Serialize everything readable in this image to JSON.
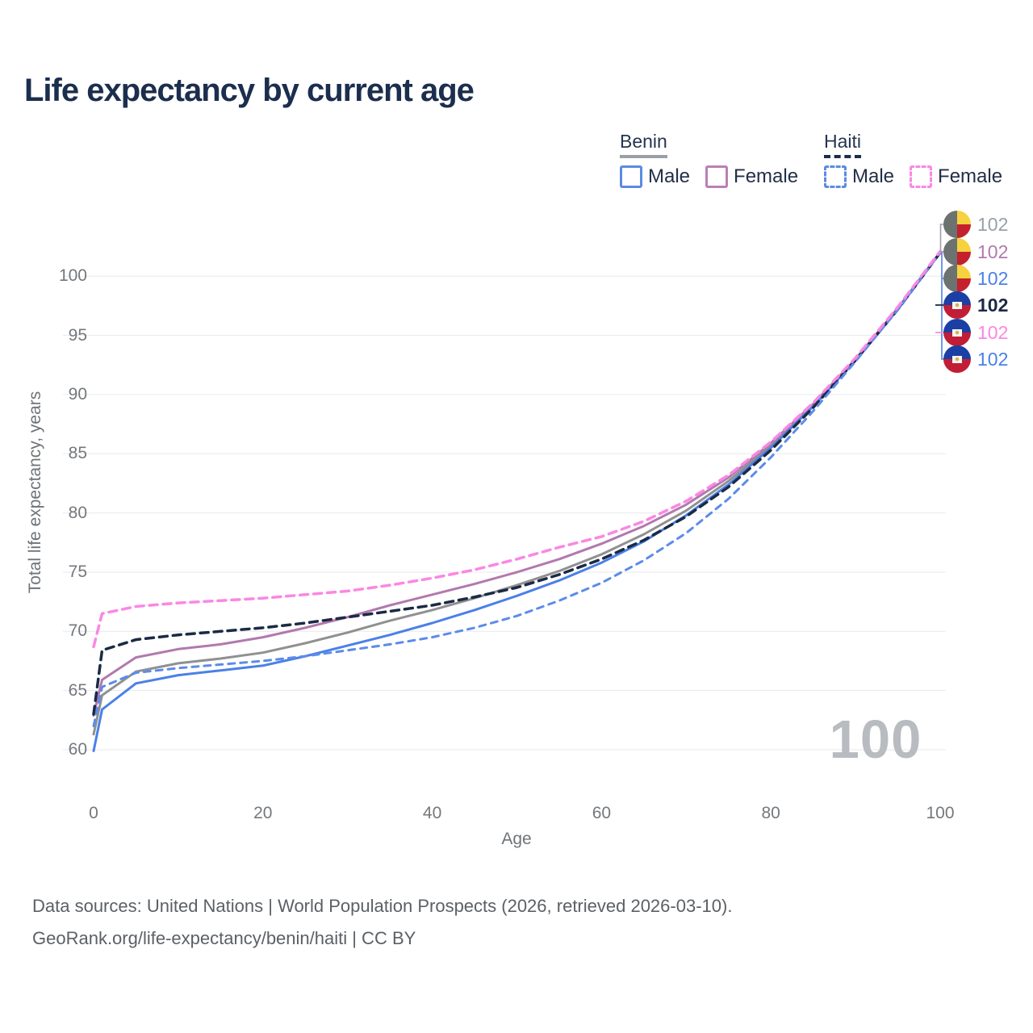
{
  "title": "Life expectancy by current age",
  "legend": {
    "groups": [
      {
        "name": "Benin",
        "line_style": "solid",
        "underline_color": "#9aa0a6",
        "items": [
          {
            "label": "Male",
            "color": "#5b8be0",
            "dashed": false
          },
          {
            "label": "Female",
            "color": "#bb7fb5",
            "dashed": false
          }
        ]
      },
      {
        "name": "Haiti",
        "line_style": "dashed",
        "underline_color": "#1c2e4e",
        "items": [
          {
            "label": "Male",
            "color": "#5b8be0",
            "dashed": true
          },
          {
            "label": "Female",
            "color": "#fb87e3",
            "dashed": true
          }
        ]
      }
    ]
  },
  "chart_data": {
    "type": "line",
    "title": "Life expectancy by current age",
    "xlabel": "Age",
    "ylabel": "Total life expectancy, years",
    "xlim": [
      0,
      100
    ],
    "ylim": [
      60,
      102
    ],
    "xticks": [
      0,
      20,
      40,
      60,
      80,
      100
    ],
    "yticks": [
      60,
      65,
      70,
      75,
      80,
      85,
      90,
      95,
      100
    ],
    "grid": "horizontal",
    "legend_position": "top-right",
    "x": [
      0,
      1,
      5,
      10,
      15,
      20,
      25,
      30,
      35,
      40,
      45,
      50,
      55,
      60,
      65,
      70,
      75,
      80,
      85,
      90,
      95,
      100
    ],
    "series": [
      {
        "id": "benin-both",
        "name": "Benin — Both sexes",
        "country": "Benin",
        "sex": "both",
        "color": "#909090",
        "dash": "",
        "width": 3,
        "values": [
          61.3,
          64.6,
          66.6,
          67.3,
          67.7,
          68.2,
          69.0,
          69.9,
          70.9,
          71.8,
          72.8,
          73.9,
          75.1,
          76.5,
          78.2,
          80.2,
          82.7,
          85.7,
          89.1,
          92.9,
          97.2,
          102.0
        ]
      },
      {
        "id": "benin-female",
        "name": "Benin — Female",
        "country": "Benin",
        "sex": "female",
        "color": "#b279ae",
        "dash": "",
        "width": 3,
        "values": [
          62.9,
          65.9,
          67.8,
          68.5,
          68.9,
          69.5,
          70.3,
          71.2,
          72.2,
          73.1,
          74.0,
          75.0,
          76.1,
          77.4,
          78.9,
          80.7,
          83.0,
          85.9,
          89.2,
          93.0,
          97.3,
          102.0
        ]
      },
      {
        "id": "benin-male",
        "name": "Benin — Male",
        "country": "Benin",
        "sex": "male",
        "color": "#4a80e8",
        "dash": "",
        "width": 3,
        "values": [
          59.9,
          63.4,
          65.6,
          66.3,
          66.7,
          67.1,
          67.9,
          68.8,
          69.7,
          70.7,
          71.8,
          73.0,
          74.3,
          75.8,
          77.6,
          79.8,
          82.4,
          85.5,
          89.0,
          92.9,
          97.2,
          102.0
        ]
      },
      {
        "id": "haiti-both",
        "name": "Haiti — Both sexes",
        "country": "Haiti",
        "sex": "both",
        "color": "#1b2a45",
        "dash": "10 7",
        "width": 3.5,
        "values": [
          63.0,
          68.4,
          69.3,
          69.7,
          70.0,
          70.3,
          70.7,
          71.2,
          71.7,
          72.2,
          72.9,
          73.7,
          74.8,
          76.1,
          77.7,
          79.7,
          82.2,
          85.3,
          88.9,
          92.9,
          97.2,
          102.0
        ]
      },
      {
        "id": "haiti-male",
        "name": "Haiti — Male",
        "country": "Haiti",
        "sex": "male",
        "color": "#5d8bea",
        "dash": "8 7",
        "width": 3,
        "values": [
          62.0,
          65.3,
          66.5,
          66.9,
          67.2,
          67.5,
          67.9,
          68.4,
          68.9,
          69.5,
          70.3,
          71.3,
          72.6,
          74.1,
          76.0,
          78.3,
          81.2,
          84.7,
          88.6,
          92.8,
          97.2,
          102.0
        ]
      },
      {
        "id": "haiti-female",
        "name": "Haiti — Female",
        "country": "Haiti",
        "sex": "female",
        "color": "#fb87e3",
        "dash": "10 7",
        "width": 3.5,
        "values": [
          68.7,
          71.5,
          72.1,
          72.4,
          72.6,
          72.8,
          73.1,
          73.4,
          73.9,
          74.5,
          75.2,
          76.1,
          77.1,
          78.0,
          79.3,
          81.0,
          83.2,
          86.0,
          89.3,
          93.1,
          97.4,
          102.1
        ]
      }
    ]
  },
  "end_labels": [
    {
      "value": "102",
      "color": "#9aa0a6",
      "flag": "benin",
      "series": "Benin — Both sexes"
    },
    {
      "value": "102",
      "color": "#b279ae",
      "flag": "benin",
      "series": "Benin — Female"
    },
    {
      "value": "102",
      "color": "#4a80e8",
      "flag": "benin",
      "series": "Benin — Male"
    },
    {
      "value": "102",
      "color": "#1b2a45",
      "flag": "haiti",
      "series": "Haiti — Both sexes"
    },
    {
      "value": "102",
      "color": "#fb87e3",
      "flag": "haiti",
      "series": "Haiti — Female"
    },
    {
      "value": "102",
      "color": "#4a80e8",
      "flag": "haiti",
      "series": "Haiti — Male"
    }
  ],
  "watermark": "100",
  "footer": {
    "line1": "Data sources: United Nations | World Population Prospects (2026, retrieved 2026-03-10).",
    "line2": "GeoRank.org/life-expectancy/benin/haiti | CC BY"
  }
}
